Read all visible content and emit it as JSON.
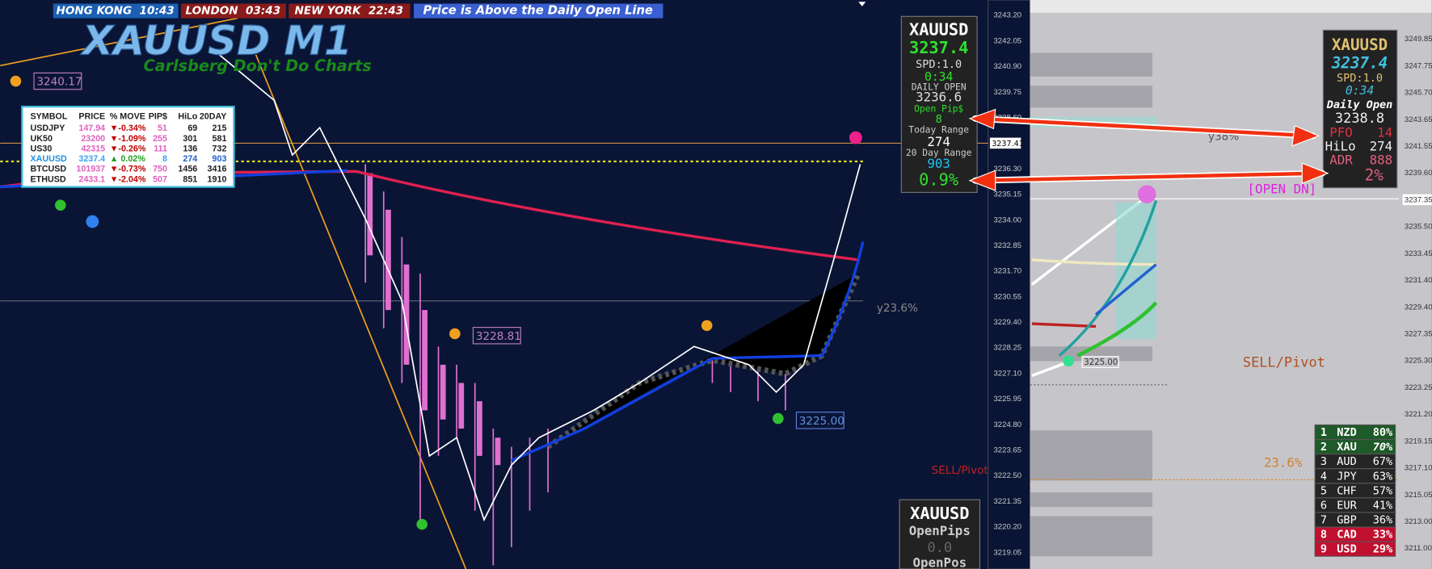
{
  "top_bar": {
    "hong_kong": "HONG KONG  10:43",
    "london": "LONDON  03:43",
    "new_york": "NEW YORK  22:43",
    "status": "Price is Above the Daily Open Line"
  },
  "left_chart": {
    "title": "XAUUSD M1",
    "subtitle": "Carlsberg Don't Do Charts",
    "labels": {
      "high": "3240.17",
      "mid": "3228.81",
      "low": "3225.00",
      "fib": "y23.6%",
      "pivot": "SELL/Pivot"
    },
    "price_axis": [
      "3243.20",
      "3242.05",
      "3240.90",
      "3239.75",
      "3238.60",
      "3236.30",
      "3235.15",
      "3234.00",
      "3232.85",
      "3231.70",
      "3230.55",
      "3229.40",
      "3228.25",
      "3227.10",
      "3225.95",
      "3224.80",
      "3223.65",
      "3222.50",
      "3221.35",
      "3220.20",
      "3219.05"
    ],
    "current_price": "3237.41",
    "table": {
      "header": [
        "SYMBOL",
        "PRICE",
        "% MOVE",
        "PIP$",
        "HiLo",
        "20DAY"
      ],
      "rows": [
        [
          "USDJPY",
          "147.94",
          "▼-0.34%",
          "51",
          "69",
          "215"
        ],
        [
          "UK50",
          "23200",
          "▼-1.09%",
          "255",
          "301",
          "581"
        ],
        [
          "US30",
          "42315",
          "▼-0.26%",
          "111",
          "136",
          "732"
        ],
        [
          "XAUUSD",
          "3237.4",
          "▲ 0.02%",
          "8",
          "274",
          "903"
        ],
        [
          "BTCUSD",
          "101937",
          "▼-0.73%",
          "750",
          "1456",
          "3416"
        ],
        [
          "ETHUSD",
          "2433.1",
          "▼-2.04%",
          "507",
          "851",
          "1910"
        ]
      ]
    },
    "info_panel": {
      "symbol": "XAUUSD",
      "price": "3237.4",
      "spread": "SPD:1.0",
      "timer": "0:34",
      "daily_open_label": "DAILY OPEN",
      "daily_open": "3236.6",
      "open_pips_label": "Open Pip$",
      "open_pips": "8",
      "today_range_label": "Today Range",
      "today_range": "274",
      "range20_label": "20 Day Range",
      "range20": "903",
      "percent": "0.9%"
    },
    "position_panel": {
      "symbol": "XAUUSD",
      "open_pips_label": "OpenPips",
      "open_pips": "0.0",
      "open_pos_label": "OpenPos"
    }
  },
  "right_chart": {
    "price_axis": [
      "3249.85",
      "3247.75",
      "3245.70",
      "3243.65",
      "3241.55",
      "3239.60",
      "3237.35",
      "3235.50",
      "3233.45",
      "3231.40",
      "3229.40",
      "3227.35",
      "3225.30",
      "3223.25",
      "3221.20",
      "3219.15",
      "3217.10",
      "3215.05",
      "3213.00",
      "3211.00"
    ],
    "info_panel": {
      "symbol": "XAUUSD",
      "price": "3237.4",
      "spread": "SPD:1.0",
      "timer": "0:34",
      "daily_open_label": "Daily Open",
      "daily_open": "3238.8",
      "pfo_label": "PFO",
      "pfo": "14",
      "hilo_label": "HiLo",
      "hilo": "274",
      "adr_label": "ADR",
      "adr": "888",
      "percent": "2%"
    },
    "labels": {
      "open_state": "[OPEN DN]",
      "fib38": "y38%",
      "low": "3225.00",
      "pivot": "SELL/Pivot",
      "fib23": "23.6%"
    },
    "strength": [
      [
        "1",
        "NZD",
        "80%"
      ],
      [
        "2",
        "XAU",
        "70%"
      ],
      [
        "3",
        "AUD",
        "67%"
      ],
      [
        "4",
        "JPY",
        "63%"
      ],
      [
        "5",
        "CHF",
        "57%"
      ],
      [
        "6",
        "EUR",
        "41%"
      ],
      [
        "7",
        "GBP",
        "36%"
      ],
      [
        "8",
        "CAD",
        "33%"
      ],
      [
        "9",
        "USD",
        "29%"
      ]
    ]
  }
}
